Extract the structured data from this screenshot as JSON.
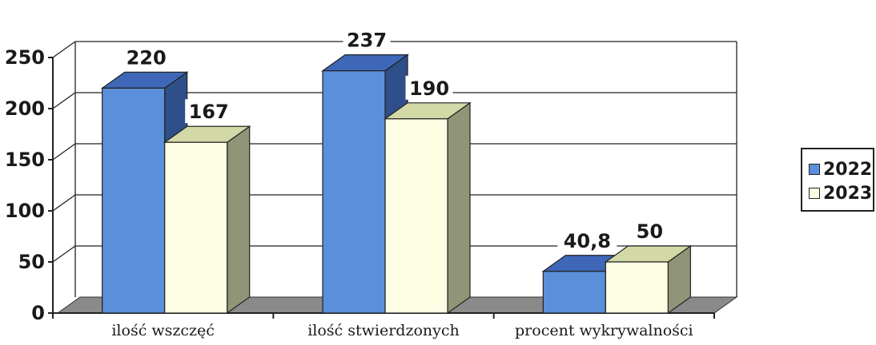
{
  "chart_data": {
    "type": "bar",
    "categories": [
      "ilość wszczęć",
      "ilość stwierdzonych",
      "procent wykrywalności"
    ],
    "series": [
      {
        "name": "2022",
        "values": [
          220,
          237,
          40.8
        ],
        "labels": [
          "220",
          "237",
          "40,8"
        ],
        "color": "#5b8fd9"
      },
      {
        "name": "2023",
        "values": [
          167,
          190,
          50
        ],
        "labels": [
          "167",
          "190",
          "50"
        ],
        "color": "#fdfde4"
      }
    ],
    "ylim": [
      0,
      250
    ],
    "yticks": [
      0,
      50,
      100,
      150,
      200,
      250
    ],
    "grid": true,
    "legend_position": "right",
    "three_d": true
  }
}
